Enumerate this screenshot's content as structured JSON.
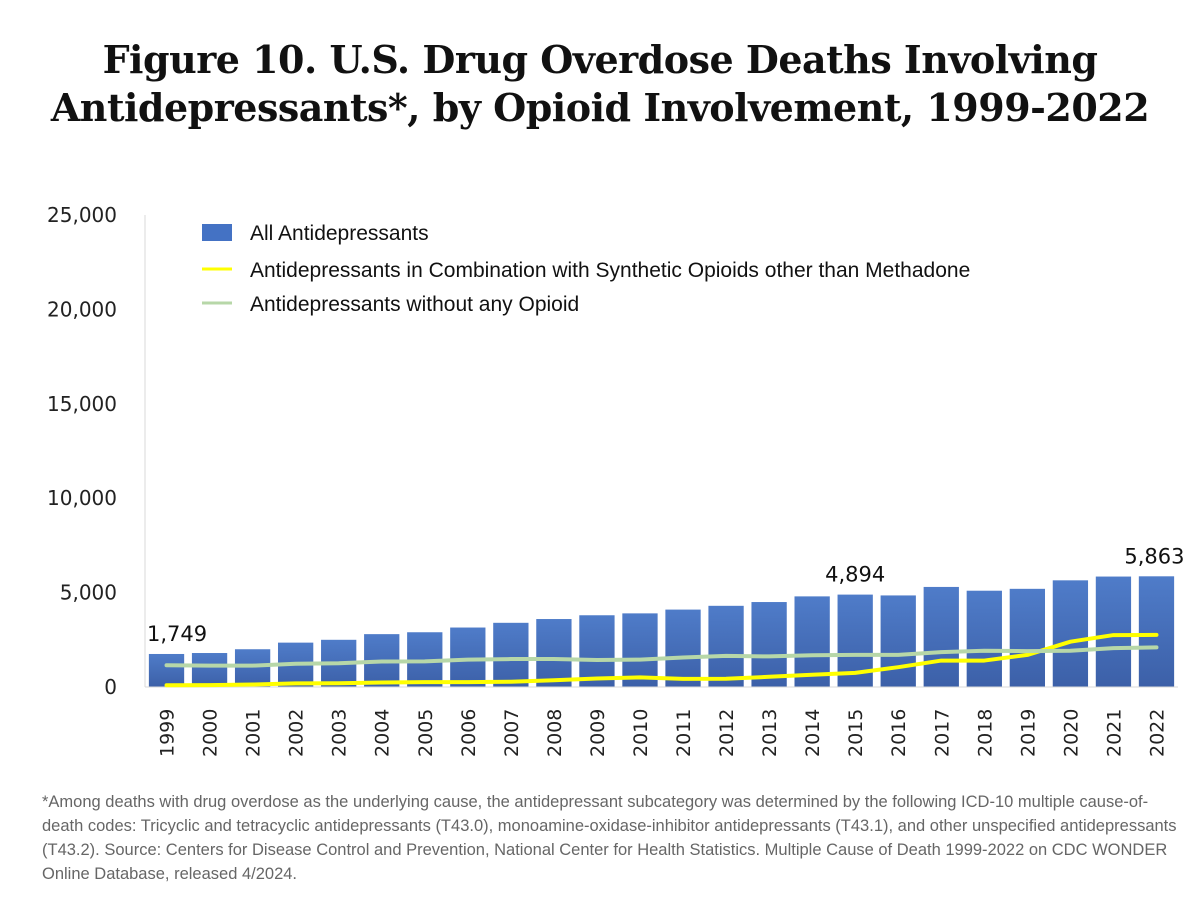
{
  "title_line1": "Figure 10. U.S. Drug Overdose Deaths Involving",
  "title_line2": "Antidepressants*, by Opioid Involvement, 1999-2022",
  "footnote": "*Among deaths with drug overdose as the underlying cause, the antidepressant subcategory was determined by the following ICD-10 multiple cause-of-death codes: Tricyclic and tetracyclic antidepressants (T43.0), monoamine-oxidase-inhibitor antidepressants (T43.1), and other unspecified antidepressants (T43.2). Source: Centers for Disease Control and Prevention, National Center for Health Statistics. Multiple Cause of Death 1999-2022 on CDC WONDER Online Database, released 4/2024.",
  "chart_data": {
    "type": "bar",
    "title": "Figure 10. U.S. Drug Overdose Deaths Involving Antidepressants*, by Opioid Involvement, 1999-2022",
    "xlabel": "",
    "ylabel": "",
    "ylim": [
      0,
      25000
    ],
    "yticks": [
      0,
      5000,
      10000,
      15000,
      20000,
      25000
    ],
    "ytick_labels": [
      "0",
      "5,000",
      "10,000",
      "15,000",
      "20,000",
      "25,000"
    ],
    "grid": false,
    "legend_position": "top-left",
    "categories": [
      "1999",
      "2000",
      "2001",
      "2002",
      "2003",
      "2004",
      "2005",
      "2006",
      "2007",
      "2008",
      "2009",
      "2010",
      "2011",
      "2012",
      "2013",
      "2014",
      "2015",
      "2016",
      "2017",
      "2018",
      "2019",
      "2020",
      "2021",
      "2022"
    ],
    "series": [
      {
        "name": "All Antidepressants",
        "type": "bar",
        "color": "#4472c4",
        "values": [
          1749,
          1800,
          2000,
          2350,
          2500,
          2800,
          2900,
          3150,
          3400,
          3600,
          3800,
          3900,
          4100,
          4300,
          4500,
          4800,
          4894,
          4850,
          5300,
          5100,
          5200,
          5650,
          5850,
          5863
        ]
      },
      {
        "name": "Antidepressants in Combination with Synthetic Opioids other than Methadone",
        "type": "line",
        "color": "#ffff00",
        "values": [
          90,
          100,
          130,
          190,
          200,
          240,
          260,
          260,
          280,
          360,
          450,
          510,
          430,
          440,
          540,
          650,
          750,
          1050,
          1400,
          1400,
          1700,
          2400,
          2750,
          2760
        ]
      },
      {
        "name": "Antidepressants without any Opioid",
        "type": "line",
        "color": "#b7d7a8",
        "values": [
          1150,
          1130,
          1130,
          1230,
          1260,
          1350,
          1360,
          1450,
          1480,
          1480,
          1430,
          1450,
          1560,
          1650,
          1620,
          1680,
          1700,
          1700,
          1850,
          1920,
          1900,
          1920,
          2060,
          2100
        ]
      }
    ],
    "data_labels": [
      {
        "category": "1999",
        "text": "1,749"
      },
      {
        "category": "2015",
        "text": "4,894"
      },
      {
        "category": "2022",
        "text": "5,863"
      }
    ]
  }
}
